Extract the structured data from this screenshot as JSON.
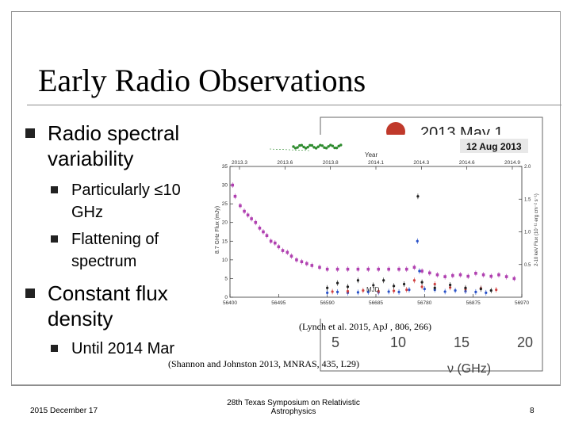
{
  "slide": {
    "title": "Early Radio Observations",
    "bullets": [
      {
        "lines": [
          "Radio spectral",
          "variability"
        ],
        "subs": [
          {
            "lines": [
              "Particularly ≤10",
              "GHz"
            ]
          },
          {
            "lines": [
              "Flattening of",
              "spectrum"
            ]
          }
        ]
      },
      {
        "lines": [
          "Constant flux",
          "density"
        ],
        "subs": [
          {
            "lines": [
              "Until 2014 Mar"
            ]
          }
        ]
      }
    ]
  },
  "back_figure": {
    "date_label": "2013 May 1",
    "x_ticks": [
      "5",
      "10",
      "15",
      "20"
    ],
    "x_axis_label": "ν (GHz)",
    "dot_color": "#c0392b"
  },
  "front_figure": {
    "date_label": "12 Aug 2013",
    "top_axis_label": "Year",
    "bottom_axis_label": "MJD",
    "left_axis_label": "8.7 GHz Flux (mJy)",
    "right_axis_label": "2-10 keV Flux (10⁻¹¹ erg cm⁻² s⁻¹)"
  },
  "chart_data": {
    "type": "scatter",
    "x_axis_bottom": {
      "label": "MJD",
      "range": [
        56400,
        56970
      ],
      "ticks": [
        "56400",
        "56495",
        "56590",
        "56685",
        "56780",
        "56875",
        "56970"
      ]
    },
    "x_axis_top": {
      "label": "Year",
      "ticks": [
        "2013.3",
        "2013.6",
        "2013.8",
        "2014.1",
        "2014.3",
        "2014.6",
        "2014.9"
      ]
    },
    "y_axis_left": {
      "label": "8.7 GHz Flux (mJy)",
      "range": [
        0,
        35
      ],
      "ticks": [
        "0",
        "5",
        "10",
        "15",
        "20",
        "25",
        "30",
        "35"
      ]
    },
    "y_axis_right": {
      "label": "2-10 keV Flux",
      "range": [
        0,
        2.0
      ],
      "ticks": [
        "0.5",
        "1.0",
        "1.5",
        "2.0"
      ]
    },
    "series": [
      {
        "name": "",
        "color": "#b040b0",
        "points": [
          [
            56405,
            30
          ],
          [
            56410,
            27
          ],
          [
            56420,
            24.5
          ],
          [
            56428,
            23
          ],
          [
            56435,
            22
          ],
          [
            56442,
            21
          ],
          [
            56450,
            20
          ],
          [
            56458,
            18.5
          ],
          [
            56465,
            17.5
          ],
          [
            56472,
            16.5
          ],
          [
            56480,
            15
          ],
          [
            56488,
            14.5
          ],
          [
            56495,
            13.5
          ],
          [
            56503,
            12.5
          ],
          [
            56512,
            12
          ],
          [
            56520,
            11
          ],
          [
            56530,
            10
          ],
          [
            56540,
            9.5
          ],
          [
            56550,
            9
          ],
          [
            56560,
            8.5
          ],
          [
            56575,
            8
          ],
          [
            56590,
            7.5
          ],
          [
            56610,
            7.5
          ],
          [
            56630,
            7.5
          ],
          [
            56650,
            7.5
          ],
          [
            56670,
            7.5
          ],
          [
            56690,
            7.5
          ],
          [
            56710,
            7.5
          ],
          [
            56730,
            7.5
          ],
          [
            56745,
            7.5
          ],
          [
            56760,
            8
          ],
          [
            56775,
            7
          ],
          [
            56790,
            6.5
          ],
          [
            56805,
            6
          ],
          [
            56820,
            5.5
          ],
          [
            56835,
            5.8
          ],
          [
            56850,
            6
          ],
          [
            56865,
            5.6
          ],
          [
            56880,
            6.4
          ],
          [
            56895,
            6
          ],
          [
            56910,
            5.6
          ],
          [
            56925,
            6
          ],
          [
            56940,
            5.5
          ],
          [
            56955,
            5
          ]
        ]
      },
      {
        "name": "",
        "color": "#2850c8",
        "points": [
          [
            56590,
            1.2
          ],
          [
            56610,
            1.4
          ],
          [
            56630,
            1.2
          ],
          [
            56650,
            1.3
          ],
          [
            56670,
            1.4
          ],
          [
            56690,
            1.3
          ],
          [
            56710,
            1.5
          ],
          [
            56730,
            1.4
          ],
          [
            56750,
            2
          ],
          [
            56766,
            15
          ],
          [
            56770,
            7
          ],
          [
            56780,
            2.2
          ],
          [
            56800,
            2
          ],
          [
            56820,
            1.5
          ],
          [
            56840,
            1.8
          ],
          [
            56860,
            1.6
          ],
          [
            56880,
            1.4
          ],
          [
            56900,
            1.2
          ]
        ]
      },
      {
        "name": "",
        "color": "#d04040",
        "points": [
          [
            56600,
            1.5
          ],
          [
            56630,
            1.6
          ],
          [
            56660,
            1.8
          ],
          [
            56690,
            1.6
          ],
          [
            56720,
            1.7
          ],
          [
            56745,
            2
          ],
          [
            56760,
            4.5
          ],
          [
            56775,
            2.8
          ],
          [
            56800,
            3.5
          ],
          [
            56830,
            2.6
          ],
          [
            56860,
            2.2
          ],
          [
            56890,
            2.4
          ],
          [
            56920,
            2
          ]
        ]
      },
      {
        "name": "",
        "color": "#202020",
        "points": [
          [
            56590,
            2.5
          ],
          [
            56610,
            3.8
          ],
          [
            56630,
            2.8
          ],
          [
            56650,
            4.5
          ],
          [
            56680,
            3.2
          ],
          [
            56700,
            4.5
          ],
          [
            56720,
            3
          ],
          [
            56740,
            3.5
          ],
          [
            56767,
            27
          ],
          [
            56775,
            4
          ],
          [
            56800,
            2.5
          ],
          [
            56830,
            3.3
          ],
          [
            56860,
            2.5
          ],
          [
            56890,
            2.2
          ],
          [
            56910,
            1.8
          ]
        ]
      }
    ]
  },
  "citations": {
    "front": "(Lynch et al. 2015, ApJ , 806, 266)",
    "back": "(Shannon and Johnston 2013, MNRAS,  435, L29)"
  },
  "footer": {
    "date": "2015 December 17",
    "center_line1": "28th Texas Symposium on Relativistic",
    "center_line2": "Astrophysics",
    "page": "8"
  }
}
